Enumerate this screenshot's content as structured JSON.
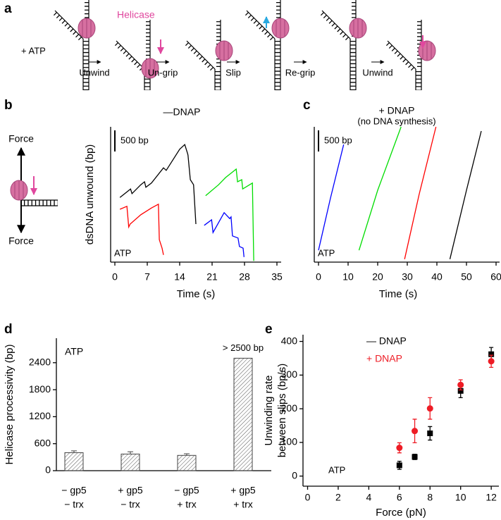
{
  "panel_labels": [
    "a",
    "b",
    "c",
    "d",
    "e"
  ],
  "schematic": {
    "helicase_label": "Helicase",
    "condition": "+ ATP",
    "steps": [
      "Unwind",
      "Un-grip",
      "Slip",
      "Re-grip",
      "Unwind"
    ]
  },
  "force_diagram": {
    "labels": [
      "Force",
      "Force"
    ]
  },
  "chart_data": [
    {
      "type": "line",
      "title": "—DNAP",
      "ylabel": "dsDNA unwound (bp)",
      "xlabel": "Time (s)",
      "annotation": "ATP",
      "scale_bar": {
        "value": 500,
        "label": "500 bp"
      },
      "xlim": [
        0,
        35
      ],
      "xticks": [
        0,
        7,
        14,
        21,
        28,
        35
      ],
      "ylim": [
        0,
        3200
      ],
      "series": [
        {
          "color": "#000000",
          "x": [
            1.1,
            3.4,
            3.7,
            5.6,
            6.4,
            6.7,
            7.9,
            10.5,
            11.1,
            14.0,
            15.1,
            15.7,
            15.8,
            16.3,
            17.0,
            17.5
          ],
          "values": [
            1530,
            1730,
            1620,
            1830,
            1900,
            1770,
            1870,
            2230,
            2170,
            2670,
            2780,
            2570,
            2530,
            1950,
            1830,
            900
          ]
        },
        {
          "color": "#ff0000",
          "x": [
            1.1,
            2.6,
            3.0,
            3.3,
            5.6,
            7.9,
            9.4,
            9.6,
            10.2,
            10.5
          ],
          "values": [
            1250,
            1320,
            830,
            900,
            1120,
            1280,
            1370,
            530,
            330,
            170
          ]
        },
        {
          "color": "#00dd00",
          "x": [
            19.6,
            22.4,
            23.9,
            26.2,
            26.5,
            27.4,
            27.6,
            29.7,
            30.0
          ],
          "values": [
            1570,
            1830,
            2000,
            2200,
            1900,
            1950,
            1730,
            1870,
            30
          ]
        },
        {
          "color": "#0000ff",
          "x": [
            19.3,
            20.9,
            21.2,
            23.6,
            24.8,
            25.1,
            25.4,
            26.6,
            26.9,
            27.7,
            27.9
          ],
          "values": [
            870,
            1000,
            700,
            1170,
            1030,
            1070,
            620,
            570,
            370,
            330,
            120
          ]
        }
      ]
    },
    {
      "type": "line",
      "title": "+ DNAP",
      "subtitle": "(no DNA synthesis)",
      "xlabel": "Time (s)",
      "annotation": "ATP",
      "scale_bar": {
        "value": 500,
        "label": "500 bp"
      },
      "xlim": [
        0,
        60
      ],
      "xticks": [
        0,
        10,
        20,
        30,
        40,
        50,
        60
      ],
      "ylim": [
        0,
        3200
      ],
      "series": [
        {
          "color": "#0000ff",
          "x": [
            0,
            4,
            8.5
          ],
          "values": [
            280,
            1500,
            2780
          ]
        },
        {
          "color": "#00dd00",
          "x": [
            13.7,
            20,
            27.9
          ],
          "values": [
            280,
            1700,
            3200
          ]
        },
        {
          "color": "#ff0000",
          "x": [
            29.1,
            34,
            39.7
          ],
          "values": [
            70,
            1600,
            3200
          ]
        },
        {
          "color": "#000000",
          "x": [
            44.4,
            50,
            55
          ],
          "values": [
            70,
            1700,
            3100
          ]
        }
      ]
    },
    {
      "type": "bar",
      "ylabel": "Helicase processivity (bp)",
      "annotation": "ATP",
      "bar_annotation": "> 2500 bp",
      "categories": [
        [
          "− gp5",
          "− trx"
        ],
        [
          "+ gp5",
          "− trx"
        ],
        [
          "− gp5",
          "+ trx"
        ],
        [
          "+ gp5",
          "+ trx"
        ]
      ],
      "values": [
        400,
        370,
        340,
        2500
      ],
      "errors": [
        40,
        50,
        35,
        null
      ],
      "ylim": [
        0,
        2600
      ],
      "yticks": [
        0,
        600,
        1200,
        1800,
        2400
      ]
    },
    {
      "type": "scatter",
      "ylabel": [
        "Unwinding rate",
        "between slips (bp/s)"
      ],
      "xlabel": "Force (pN)",
      "annotation": "ATP",
      "legend": "upper left",
      "x": [
        6,
        7,
        8,
        10,
        12
      ],
      "series": [
        {
          "name": "— DNAP",
          "color": "#000000",
          "marker": "square",
          "values": [
            32,
            57,
            127,
            253,
            362
          ],
          "errors": [
            12,
            8,
            20,
            20,
            20
          ]
        },
        {
          "name": "+ DNAP",
          "color": "#ee1c25",
          "marker": "circle",
          "values": [
            84,
            134,
            201,
            271,
            341
          ],
          "errors": [
            15,
            35,
            32,
            15,
            18
          ]
        }
      ],
      "xlim": [
        -0.3,
        12.5
      ],
      "xticks": [
        0,
        2,
        4,
        6,
        8,
        10,
        12
      ],
      "ylim": [
        -30,
        420
      ],
      "yticks": [
        0,
        100,
        200,
        300,
        400
      ]
    }
  ]
}
